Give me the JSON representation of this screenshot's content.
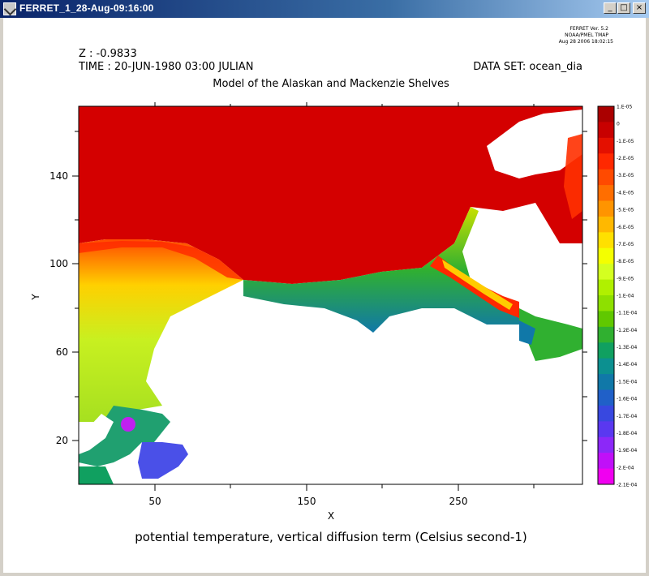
{
  "window": {
    "title": "FERRET_1_28-Aug-09:16:00",
    "minimize_glyph": "_",
    "maximize_glyph": "□",
    "close_glyph": "×"
  },
  "header": {
    "z_label": "Z : -0.9833",
    "time_label": "TIME : 20-JUN-1980 03:00 JULIAN",
    "dataset_label": "DATA SET: ocean_dia",
    "plot_title": "Model of the Alaskan and Mackenzie Shelves",
    "version_line1": "FERRET Ver. 5.2",
    "version_line2": "NOAA/PMEL TMAP",
    "version_line3": "Aug 28 2006 18:02:15"
  },
  "plot": {
    "xlabel": "X",
    "ylabel": "Y",
    "x_ticks": [
      "50",
      "150",
      "250"
    ],
    "y_ticks": [
      "20",
      "60",
      "100",
      "140"
    ],
    "caption": "potential temperature, vertical diffusion term (Celsius second-1)"
  },
  "colorbar": {
    "labels": [
      "1.E-05",
      "0",
      "-1.E-05",
      "-2.E-05",
      "-3.E-05",
      "-4.E-05",
      "-5.E-05",
      "-6.E-05",
      "-7.E-05",
      "-8.E-05",
      "-9.E-05",
      "-1.E-04",
      "-1.1E-04",
      "-1.2E-04",
      "-1.3E-04",
      "-1.4E-04",
      "-1.5E-04",
      "-1.6E-04",
      "-1.7E-04",
      "-1.8E-04",
      "-1.9E-04",
      "-2.E-04",
      "-2.1E-04"
    ],
    "colors": [
      "#aa0000",
      "#c80000",
      "#e41000",
      "#ff2800",
      "#ff4a00",
      "#ff6e00",
      "#ff9400",
      "#ffb800",
      "#ffe000",
      "#f4ff00",
      "#d4ff20",
      "#b0f000",
      "#8ee000",
      "#60c800",
      "#30b030",
      "#10a060",
      "#0c9090",
      "#1078a8",
      "#2060c8",
      "#3848e0",
      "#5a38f0",
      "#8c28f8",
      "#c010f8",
      "#f000f0"
    ]
  }
}
